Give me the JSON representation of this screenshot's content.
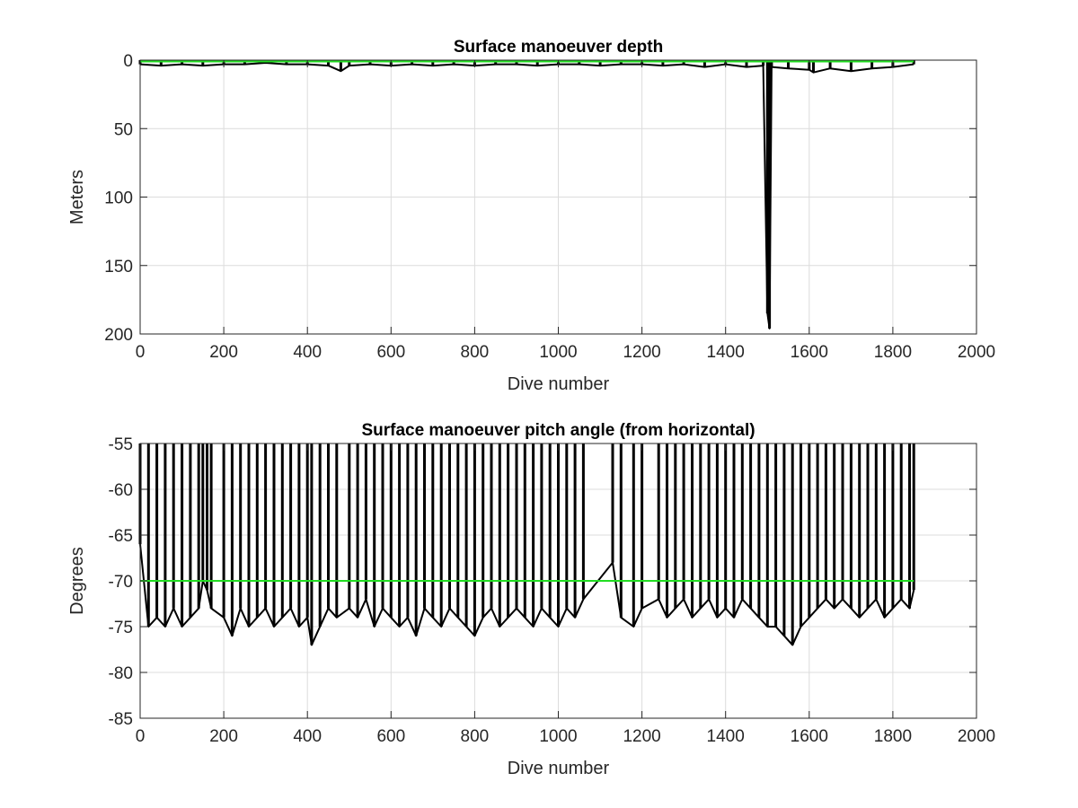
{
  "chart_data": [
    {
      "type": "line",
      "title": "Surface manoeuver depth",
      "xlabel": "Dive number",
      "ylabel": "Meters",
      "xlim": [
        0,
        2000
      ],
      "ylim": [
        0,
        200
      ],
      "y_reversed": true,
      "grid": true,
      "x_ticks": [
        0,
        200,
        400,
        600,
        800,
        1000,
        1200,
        1400,
        1600,
        1800,
        2000
      ],
      "y_ticks": [
        0,
        50,
        100,
        150,
        200
      ],
      "series": [
        {
          "color": "#000000",
          "x": [
            0,
            50,
            100,
            150,
            200,
            250,
            300,
            350,
            400,
            450,
            480,
            500,
            550,
            600,
            650,
            700,
            750,
            800,
            850,
            900,
            950,
            1000,
            1050,
            1100,
            1150,
            1200,
            1250,
            1300,
            1350,
            1400,
            1450,
            1490,
            1500,
            1505,
            1510,
            1550,
            1600,
            1610,
            1650,
            1700,
            1750,
            1800,
            1850
          ],
          "y": [
            3,
            4,
            3,
            4,
            3,
            3,
            2,
            3,
            3,
            4,
            8,
            4,
            3,
            4,
            3,
            4,
            3,
            4,
            3,
            3,
            4,
            3,
            3,
            4,
            3,
            3,
            4,
            3,
            5,
            3,
            5,
            4,
            185,
            196,
            5,
            6,
            7,
            9,
            6,
            8,
            6,
            5,
            3
          ]
        },
        {
          "color": "#22dd22",
          "x": [
            0,
            1850
          ],
          "y": [
            1,
            1
          ]
        }
      ]
    },
    {
      "type": "line",
      "title": "Surface manoeuver pitch angle (from horizontal)",
      "xlabel": "Dive number",
      "ylabel": "Degrees",
      "xlim": [
        0,
        2000
      ],
      "ylim": [
        -85,
        -55
      ],
      "grid": true,
      "x_ticks": [
        0,
        200,
        400,
        600,
        800,
        1000,
        1200,
        1400,
        1600,
        1800,
        2000
      ],
      "y_ticks": [
        -55,
        -60,
        -65,
        -70,
        -75,
        -80,
        -85
      ],
      "series": [
        {
          "color": "#000000",
          "x": [
            0,
            20,
            40,
            60,
            80,
            100,
            120,
            140,
            150,
            160,
            170,
            200,
            220,
            240,
            260,
            280,
            300,
            320,
            340,
            360,
            380,
            400,
            410,
            430,
            450,
            470,
            500,
            520,
            540,
            560,
            580,
            600,
            620,
            640,
            660,
            680,
            700,
            720,
            740,
            760,
            780,
            800,
            820,
            840,
            860,
            880,
            900,
            920,
            940,
            960,
            980,
            1000,
            1020,
            1040,
            1060,
            1130,
            1150,
            1180,
            1200,
            1240,
            1260,
            1280,
            1300,
            1320,
            1340,
            1360,
            1380,
            1400,
            1420,
            1440,
            1460,
            1480,
            1500,
            1520,
            1540,
            1560,
            1580,
            1600,
            1620,
            1640,
            1660,
            1680,
            1700,
            1720,
            1740,
            1760,
            1780,
            1800,
            1820,
            1840,
            1850
          ],
          "y": [
            -66,
            -75,
            -74,
            -75,
            -73,
            -75,
            -74,
            -73,
            -70,
            -71,
            -73,
            -74,
            -76,
            -73,
            -75,
            -74,
            -73,
            -75,
            -74,
            -73,
            -75,
            -74,
            -77,
            -75,
            -73,
            -74,
            -73,
            -74,
            -72,
            -75,
            -73,
            -74,
            -75,
            -74,
            -76,
            -73,
            -74,
            -75,
            -73,
            -74,
            -75,
            -76,
            -74,
            -73,
            -75,
            -74,
            -73,
            -74,
            -75,
            -73,
            -74,
            -75,
            -73,
            -74,
            -72,
            -68,
            -74,
            -75,
            -73,
            -72,
            -74,
            -73,
            -72,
            -74,
            -73,
            -72,
            -74,
            -73,
            -74,
            -72,
            -73,
            -74,
            -75,
            -75,
            -76,
            -77,
            -75,
            -74,
            -73,
            -72,
            -73,
            -72,
            -73,
            -74,
            -73,
            -72,
            -74,
            -73,
            -72,
            -73,
            -71
          ]
        },
        {
          "color": "#22dd22",
          "x": [
            0,
            1850
          ],
          "y": [
            -70,
            -70
          ]
        }
      ]
    }
  ]
}
